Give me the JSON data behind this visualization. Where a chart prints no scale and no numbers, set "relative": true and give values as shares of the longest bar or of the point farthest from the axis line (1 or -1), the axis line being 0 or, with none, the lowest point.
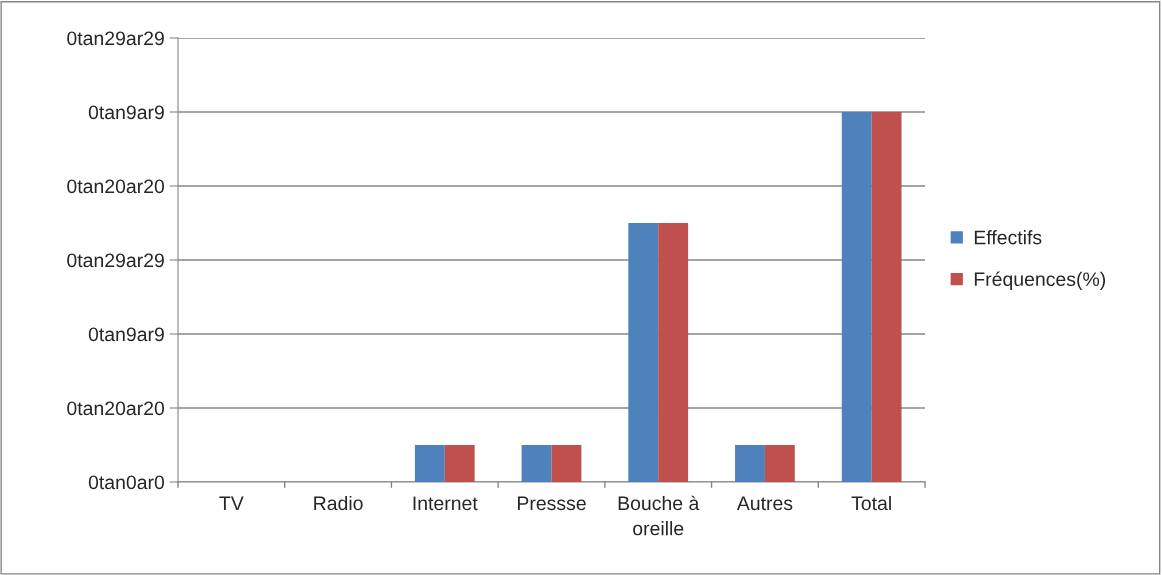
{
  "chart_data": {
    "type": "bar",
    "categories": [
      "TV",
      "Radio",
      "Internet",
      "Pressse",
      "Bouche à\noreille",
      "Autres",
      "Total"
    ],
    "series": [
      {
        "name": "Effectifs",
        "color": "#4f81bd",
        "values": [
          0,
          0,
          0.1,
          0.1,
          0.7,
          0.1,
          1
        ]
      },
      {
        "name": "Fréquences(%)",
        "color": "#c0504d",
        "values": [
          0,
          0,
          0.1,
          0.1,
          0.7,
          0.1,
          1
        ]
      }
    ],
    "relative": true,
    "annotations": [
      "0tan0ar0",
      "0tan20ar20",
      "0tan9ar9",
      "0tan29ar29",
      "0tan20ar20",
      "0tan9ar9",
      "0tan29ar29"
    ],
    "grid": "y",
    "legend": "right"
  }
}
